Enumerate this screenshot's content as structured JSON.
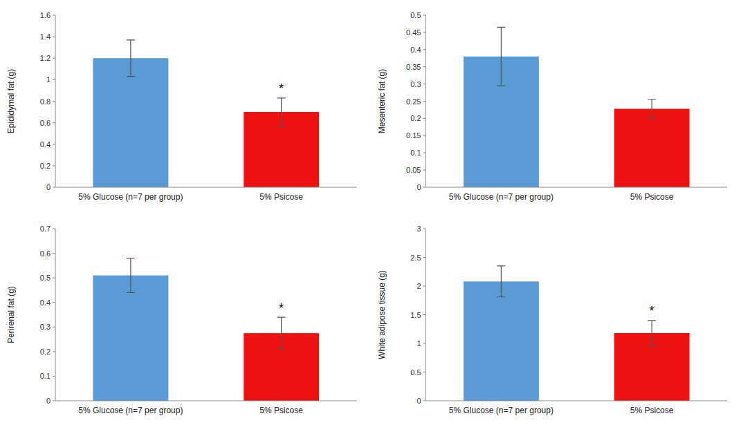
{
  "chart_data": [
    {
      "type": "bar",
      "y_label": "Epididymal fat (g)",
      "categories": [
        "5% Glucose (n=7 per group)",
        "5% Psicose"
      ],
      "values": [
        1.2,
        0.7
      ],
      "errors": [
        0.17,
        0.13
      ],
      "colors": [
        "#5B9BD5",
        "#EE1111"
      ],
      "ylim": [
        0,
        1.6
      ],
      "yticks": [
        0,
        0.2,
        0.4,
        0.6,
        0.8,
        1,
        1.2,
        1.4,
        1.6
      ],
      "annotations": [
        {
          "x": "5% Psicose",
          "text": "*"
        }
      ],
      "grid": false
    },
    {
      "type": "bar",
      "y_label": "Mesenteric fat (g)",
      "categories": [
        "5% Glucose (n=7 per group)",
        "5% Psicose"
      ],
      "values": [
        0.38,
        0.228
      ],
      "errors": [
        0.085,
        0.028
      ],
      "colors": [
        "#5B9BD5",
        "#EE1111"
      ],
      "ylim": [
        0,
        0.5
      ],
      "yticks": [
        0,
        0.05,
        0.1,
        0.15,
        0.2,
        0.25,
        0.3,
        0.35,
        0.4,
        0.45,
        0.5
      ],
      "grid": false
    },
    {
      "type": "bar",
      "y_label": "Perirenal fat (g)",
      "categories": [
        "5% Glucose (n=7 per group)",
        "5% Psicose"
      ],
      "values": [
        0.51,
        0.275
      ],
      "errors": [
        0.07,
        0.065
      ],
      "colors": [
        "#5B9BD5",
        "#EE1111"
      ],
      "ylim": [
        0,
        0.7
      ],
      "yticks": [
        0,
        0.1,
        0.2,
        0.3,
        0.4,
        0.5,
        0.6,
        0.7
      ],
      "annotations": [
        {
          "x": "5% Psicose",
          "text": "*"
        }
      ],
      "grid": false
    },
    {
      "type": "bar",
      "y_label": "White adipose tissue (g)",
      "categories": [
        "5% Glucose (n=7 per group)",
        "5% Psicose"
      ],
      "values": [
        2.08,
        1.18
      ],
      "errors": [
        0.27,
        0.22
      ],
      "colors": [
        "#5B9BD5",
        "#EE1111"
      ],
      "ylim": [
        0,
        3.0
      ],
      "yticks": [
        0,
        0.5,
        1,
        1.5,
        2,
        2.5,
        3
      ],
      "annotations": [
        {
          "x": "5% Psicose",
          "text": "*"
        }
      ],
      "grid": false
    }
  ]
}
